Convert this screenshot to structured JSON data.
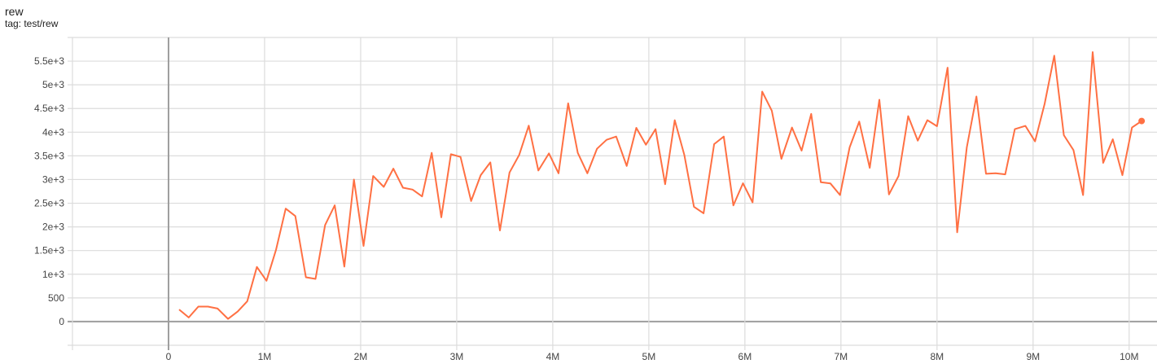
{
  "header": {
    "title": "rew",
    "tag": "tag: test/rew"
  },
  "chart_data": {
    "type": "line",
    "title": "rew",
    "subtitle": "tag: test/rew",
    "xlabel": "",
    "ylabel": "",
    "xlim": [
      -1000000,
      10290000
    ],
    "ylim": [
      -500,
      6000
    ],
    "grid": true,
    "x_ticks": [
      0,
      1000000,
      2000000,
      3000000,
      4000000,
      5000000,
      6000000,
      7000000,
      8000000,
      9000000,
      10000000
    ],
    "x_tick_labels": [
      "0",
      "1M",
      "2M",
      "3M",
      "4M",
      "5M",
      "6M",
      "7M",
      "8M",
      "9M",
      "10M"
    ],
    "y_ticks": [
      0,
      500,
      1000,
      1500,
      2000,
      2500,
      3000,
      3500,
      4000,
      4500,
      5000,
      5500
    ],
    "y_tick_labels": [
      "0",
      "500",
      "1e+3",
      "1.5e+3",
      "2e+3",
      "2.5e+3",
      "3e+3",
      "3.5e+3",
      "4e+3",
      "4.5e+3",
      "5e+3",
      "5.5e+3"
    ],
    "series": [
      {
        "color": "#ff7043",
        "x": [
          110000,
          210000,
          310000,
          410000,
          510000,
          620000,
          720000,
          820000,
          920000,
          1020000,
          1120000,
          1220000,
          1320000,
          1430000,
          1530000,
          1630000,
          1730000,
          1830000,
          1930000,
          2030000,
          2130000,
          2240000,
          2340000,
          2440000,
          2540000,
          2640000,
          2740000,
          2840000,
          2940000,
          3040000,
          3150000,
          3250000,
          3350000,
          3450000,
          3550000,
          3650000,
          3750000,
          3850000,
          3960000,
          4060000,
          4160000,
          4260000,
          4360000,
          4460000,
          4560000,
          4660000,
          4770000,
          4870000,
          4970000,
          5070000,
          5170000,
          5270000,
          5370000,
          5470000,
          5570000,
          5680000,
          5780000,
          5880000,
          5980000,
          6080000,
          6180000,
          6280000,
          6380000,
          6490000,
          6590000,
          6690000,
          6790000,
          6890000,
          6990000,
          7090000,
          7190000,
          7300000,
          7400000,
          7500000,
          7600000,
          7700000,
          7800000,
          7900000,
          8000000,
          8110000,
          8210000,
          8310000,
          8410000,
          8510000,
          8610000,
          8710000,
          8810000,
          8920000,
          9020000,
          9120000,
          9220000,
          9320000,
          9420000,
          9520000,
          9620000,
          9730000,
          9830000,
          9930000,
          10030000,
          10130000
        ],
        "y": [
          255,
          86,
          316,
          316,
          276,
          57,
          212,
          431,
          1155,
          862,
          1523,
          2385,
          2229,
          936,
          902,
          2040,
          2454,
          1161,
          3000,
          1598,
          3075,
          2845,
          3230,
          2828,
          2787,
          2644,
          3563,
          2201,
          3534,
          3477,
          2546,
          3092,
          3362,
          1925,
          3149,
          3517,
          4138,
          3190,
          3552,
          3132,
          4609,
          3563,
          3132,
          3649,
          3839,
          3908,
          3287,
          4092,
          3736,
          4063,
          2902,
          4253,
          3517,
          2425,
          2287,
          3747,
          3908,
          2454,
          2920,
          2517,
          4856,
          4454,
          3437,
          4098,
          3609,
          4385,
          2945,
          2917,
          2672,
          3678,
          4224,
          3247,
          4684,
          2684,
          3075,
          4339,
          3822,
          4253,
          4126,
          5362,
          1885,
          3678,
          4753,
          3121,
          3132,
          3109,
          4063,
          4132,
          3805,
          4598,
          5615,
          3937,
          3621,
          2672,
          5690,
          3351,
          3851,
          3092,
          4098,
          4236
        ]
      }
    ]
  }
}
